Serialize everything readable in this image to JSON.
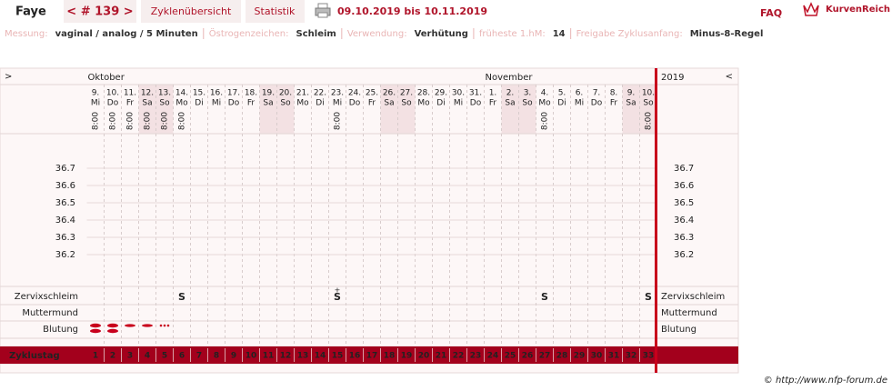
{
  "header": {
    "name": "Faye",
    "cycle": "< # 139 >",
    "tabs": [
      "Zyklenübersicht",
      "Statistik"
    ],
    "date_range": "09.10.2019 bis 10.11.2019",
    "faq": "FAQ",
    "logo": "KurvenReich"
  },
  "info": [
    {
      "label": "Messung:",
      "value": "vaginal / analog / 5 Minuten"
    },
    {
      "label": "Östrogenzeichen:",
      "value": "Schleim"
    },
    {
      "label": "Verwendung:",
      "value": "Verhütung"
    },
    {
      "label": "früheste 1.hM:",
      "value": "14"
    },
    {
      "label": "Freigabe Zyklusanfang:",
      "value": "Minus-8-Regel"
    }
  ],
  "chart": {
    "nav_left": ">",
    "nav_right": "<",
    "year": "2019",
    "months": [
      {
        "label": "Oktober",
        "start_day": 1
      },
      {
        "label": "November",
        "start_day": 24
      }
    ],
    "days": [
      {
        "date": "9.",
        "weekday": "Mi",
        "time": "8:00"
      },
      {
        "date": "10.",
        "weekday": "Do",
        "time": "8:00"
      },
      {
        "date": "11.",
        "weekday": "Fr",
        "time": "8:00"
      },
      {
        "date": "12.",
        "weekday": "Sa",
        "time": "8:00",
        "weekend": true
      },
      {
        "date": "13.",
        "weekday": "So",
        "time": "8:00",
        "weekend": true
      },
      {
        "date": "14.",
        "weekday": "Mo",
        "time": "8:00"
      },
      {
        "date": "15.",
        "weekday": "Di"
      },
      {
        "date": "16.",
        "weekday": "Mi"
      },
      {
        "date": "17.",
        "weekday": "Do"
      },
      {
        "date": "18.",
        "weekday": "Fr"
      },
      {
        "date": "19.",
        "weekday": "Sa",
        "weekend": true
      },
      {
        "date": "20.",
        "weekday": "So",
        "weekend": true
      },
      {
        "date": "21.",
        "weekday": "Mo"
      },
      {
        "date": "22.",
        "weekday": "Di"
      },
      {
        "date": "23.",
        "weekday": "Mi",
        "time": "8:00"
      },
      {
        "date": "24.",
        "weekday": "Do"
      },
      {
        "date": "25.",
        "weekday": "Fr"
      },
      {
        "date": "26.",
        "weekday": "Sa",
        "weekend": true
      },
      {
        "date": "27.",
        "weekday": "So",
        "weekend": true
      },
      {
        "date": "28.",
        "weekday": "Mo"
      },
      {
        "date": "29.",
        "weekday": "Di"
      },
      {
        "date": "30.",
        "weekday": "Mi"
      },
      {
        "date": "31.",
        "weekday": "Do"
      },
      {
        "date": "1.",
        "weekday": "Fr"
      },
      {
        "date": "2.",
        "weekday": "Sa",
        "weekend": true
      },
      {
        "date": "3.",
        "weekday": "So",
        "weekend": true
      },
      {
        "date": "4.",
        "weekday": "Mo",
        "time": "8:00"
      },
      {
        "date": "5.",
        "weekday": "Di"
      },
      {
        "date": "6.",
        "weekday": "Mi"
      },
      {
        "date": "7.",
        "weekday": "Do"
      },
      {
        "date": "8.",
        "weekday": "Fr"
      },
      {
        "date": "9.",
        "weekday": "Sa",
        "weekend": true
      },
      {
        "date": "10.",
        "weekday": "So",
        "time": "8:00",
        "weekend": true
      }
    ],
    "temperature": {
      "ylim": [
        36.2,
        36.7
      ],
      "yticks": [
        36.7,
        36.6,
        36.5,
        36.4,
        36.3,
        36.2
      ]
    },
    "rows": {
      "cervix": "Zervixschleim",
      "cervix_os": "Muttermund",
      "bleeding": "Blutung",
      "cycle_day": "Zyklustag"
    },
    "cervix_marks": [
      {
        "day": 6,
        "label": "S"
      },
      {
        "day": 15,
        "label": "S",
        "extra": "+"
      },
      {
        "day": 27,
        "label": "S"
      },
      {
        "day": 33,
        "label": "S"
      }
    ],
    "bleeding_marks": [
      {
        "day": 1,
        "strength": 3
      },
      {
        "day": 2,
        "strength": 3
      },
      {
        "day": 3,
        "strength": 2
      },
      {
        "day": 4,
        "strength": 2
      },
      {
        "day": 5,
        "strength": 1
      }
    ],
    "cycle_days": [
      1,
      2,
      3,
      4,
      5,
      6,
      7,
      8,
      9,
      10,
      11,
      12,
      13,
      14,
      15,
      16,
      17,
      18,
      19,
      20,
      21,
      22,
      23,
      24,
      25,
      26,
      27,
      28,
      29,
      30,
      31,
      32,
      33
    ]
  },
  "footer": "© http://www.nfp-forum.de"
}
